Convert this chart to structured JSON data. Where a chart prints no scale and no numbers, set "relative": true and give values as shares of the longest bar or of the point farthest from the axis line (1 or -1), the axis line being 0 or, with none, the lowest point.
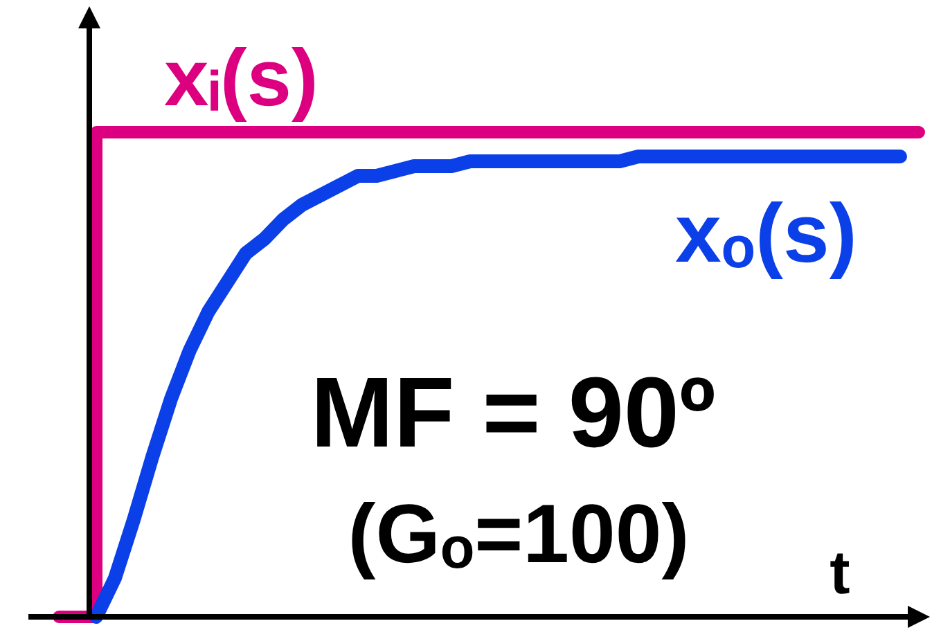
{
  "chart_data": {
    "type": "line",
    "relative": true,
    "legend": false,
    "xlabel": "t",
    "annotations": [
      "MF = 90º",
      "(Gₒ=100)"
    ],
    "categories": [
      null,
      null,
      null,
      null,
      null,
      null,
      null,
      null,
      null,
      null,
      null,
      null,
      null,
      null,
      null,
      null,
      null,
      null,
      null,
      null,
      null,
      null,
      null,
      null,
      null,
      null,
      null,
      null,
      null,
      null,
      null,
      null,
      null,
      null,
      null,
      null,
      null,
      null,
      null,
      null,
      null,
      null,
      null,
      null,
      null,
      null,
      null
    ],
    "series": [
      {
        "name": "xᵢ(s)",
        "type": "step",
        "color": "#dc0080",
        "values": [
          0,
          0,
          1,
          1,
          1,
          1,
          1,
          1,
          1,
          1,
          1,
          1,
          1,
          1,
          1,
          1,
          1,
          1,
          1,
          1,
          1,
          1,
          1,
          1,
          1,
          1,
          1,
          1,
          1,
          1,
          1,
          1,
          1,
          1,
          1,
          1,
          1,
          1,
          1,
          1,
          1,
          1,
          1,
          1,
          1,
          1,
          1
        ]
      },
      {
        "name": "xₒ(s)",
        "color": "#0b3fe8",
        "values": [
          null,
          null,
          0,
          0.08,
          0.2,
          0.33,
          0.45,
          0.55,
          0.63,
          0.69,
          0.75,
          0.78,
          0.82,
          0.85,
          0.87,
          0.89,
          0.91,
          0.91,
          0.92,
          0.93,
          0.93,
          0.93,
          0.94,
          0.94,
          0.94,
          0.94,
          0.94,
          0.94,
          0.94,
          0.94,
          0.94,
          0.95,
          0.95,
          0.95,
          0.95,
          0.95,
          0.95,
          0.95,
          0.95,
          0.95,
          0.95,
          0.95,
          0.95,
          0.95,
          0.95,
          0.95,
          null
        ]
      }
    ]
  }
}
